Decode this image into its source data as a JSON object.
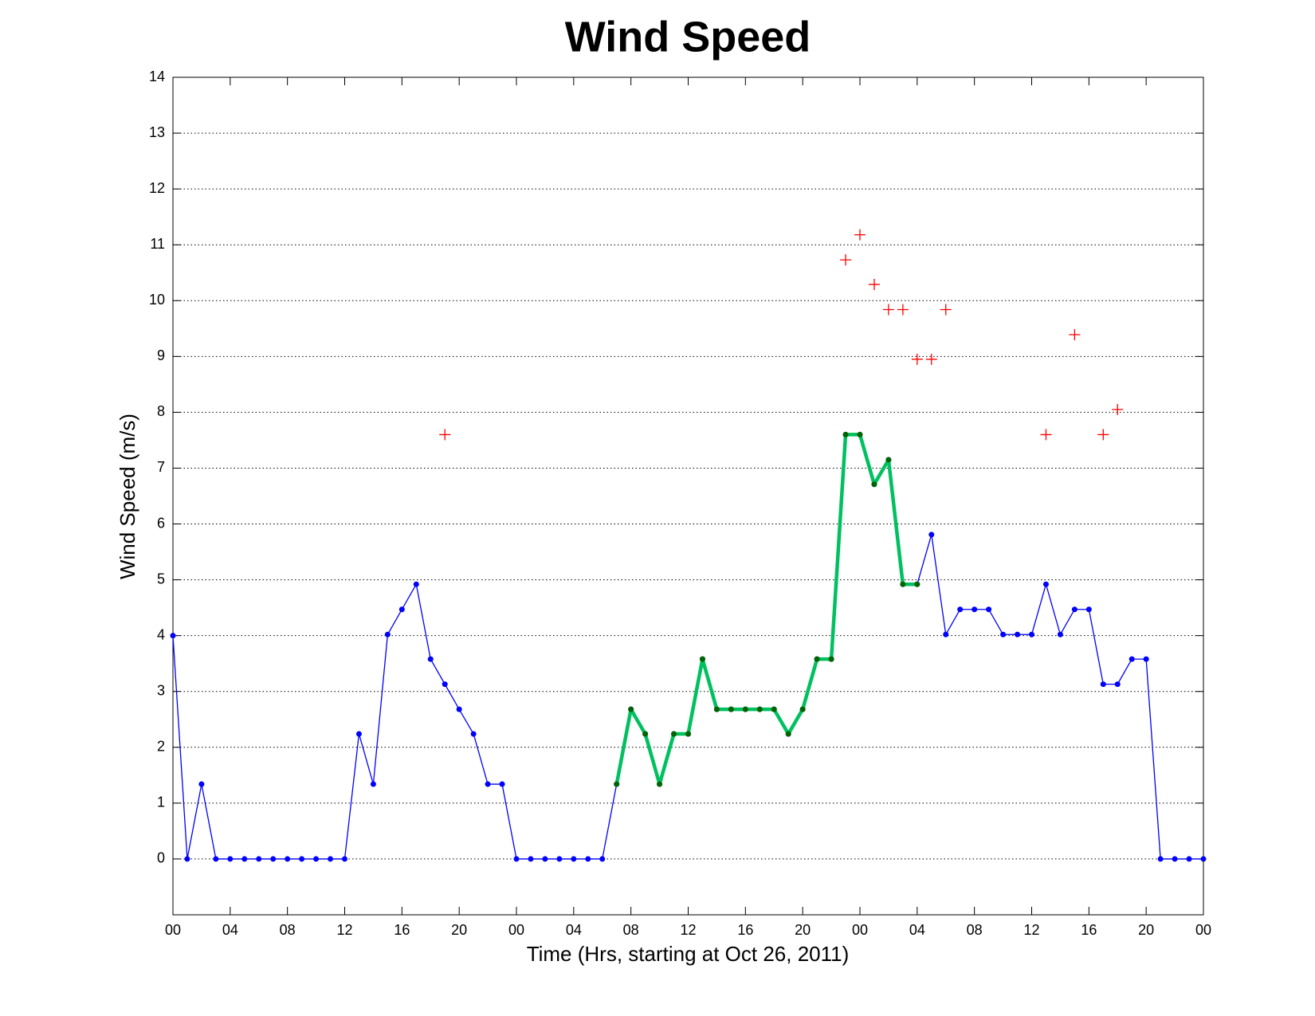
{
  "chart_data": {
    "type": "line",
    "title": "Wind Speed",
    "xlabel": "Time (Hrs, starting at Oct 26, 2011)",
    "ylabel": "Wind Speed (m/s)",
    "x": [
      0,
      1,
      2,
      3,
      4,
      5,
      6,
      7,
      8,
      9,
      10,
      11,
      12,
      13,
      14,
      15,
      16,
      17,
      18,
      19,
      20,
      21,
      22,
      23,
      24,
      25,
      26,
      27,
      28,
      29,
      30,
      31,
      32,
      33,
      34,
      35,
      36,
      37,
      38,
      39,
      40,
      41,
      42,
      43,
      44,
      45,
      46,
      47,
      48,
      49,
      50,
      51,
      52,
      53,
      54,
      55,
      56,
      57,
      58,
      59,
      60,
      61,
      62,
      63,
      64,
      65,
      66,
      67,
      68,
      69,
      70,
      71,
      72
    ],
    "series": [
      {
        "color": "#0000ff",
        "width": 1.3,
        "marker_color": "#0000ff",
        "values": [
          4,
          0,
          1.34,
          0,
          0,
          0,
          0,
          0,
          0,
          0,
          0,
          0,
          0,
          2.24,
          1.34,
          4.02,
          4.47,
          4.92,
          3.58,
          3.13,
          2.68,
          2.24,
          1.34,
          1.34,
          0,
          0,
          0,
          0,
          0,
          0,
          0,
          1.34,
          2.68,
          2.24,
          1.34,
          2.24,
          2.24,
          3.58,
          2.68,
          2.68,
          2.68,
          2.68,
          2.68,
          2.24,
          2.68,
          3.58,
          3.58,
          7.6,
          7.6,
          6.71,
          7.15,
          4.92,
          4.92,
          5.81,
          4.02,
          4.47,
          4.47,
          4.47,
          4.02,
          4.02,
          4.02,
          4.92,
          4.02,
          4.47,
          4.47,
          3.13,
          3.13,
          3.58,
          3.58,
          0,
          0,
          0,
          0
        ]
      },
      {
        "color": "#00c060",
        "width": 4.5,
        "marker_color": "#006400",
        "values": [
          null,
          null,
          null,
          null,
          null,
          null,
          null,
          null,
          null,
          null,
          null,
          null,
          null,
          null,
          null,
          null,
          null,
          null,
          null,
          null,
          null,
          null,
          null,
          null,
          null,
          null,
          null,
          null,
          null,
          null,
          null,
          1.34,
          2.68,
          2.24,
          1.34,
          2.24,
          2.24,
          3.58,
          2.68,
          2.68,
          2.68,
          2.68,
          2.68,
          2.24,
          2.68,
          3.58,
          3.58,
          7.6,
          7.6,
          6.71,
          7.15,
          4.92,
          4.92,
          null,
          null,
          null,
          null,
          null,
          null,
          null,
          null,
          null,
          null,
          null,
          null,
          null,
          null,
          null,
          null,
          null,
          null,
          null,
          null
        ]
      },
      {
        "type": "scatter",
        "marker": "+",
        "color": "#ff0000",
        "x": [
          19,
          47,
          48,
          49,
          50,
          51,
          52,
          53,
          54,
          61,
          63,
          65,
          66
        ],
        "values": [
          7.6,
          10.73,
          11.18,
          10.29,
          9.84,
          9.84,
          8.95,
          8.95,
          9.84,
          7.6,
          9.39,
          7.6,
          8.05
        ]
      }
    ],
    "xlim": [
      0,
      72
    ],
    "xticks": [
      {
        "value": 0,
        "label": "00"
      },
      {
        "value": 4,
        "label": "04"
      },
      {
        "value": 8,
        "label": "08"
      },
      {
        "value": 12,
        "label": "12"
      },
      {
        "value": 16,
        "label": "16"
      },
      {
        "value": 20,
        "label": "20"
      },
      {
        "value": 24,
        "label": "00"
      },
      {
        "value": 28,
        "label": "04"
      },
      {
        "value": 32,
        "label": "08"
      },
      {
        "value": 36,
        "label": "12"
      },
      {
        "value": 40,
        "label": "16"
      },
      {
        "value": 44,
        "label": "20"
      },
      {
        "value": 48,
        "label": "00"
      },
      {
        "value": 52,
        "label": "04"
      },
      {
        "value": 56,
        "label": "08"
      },
      {
        "value": 60,
        "label": "12"
      },
      {
        "value": 64,
        "label": "16"
      },
      {
        "value": 68,
        "label": "20"
      },
      {
        "value": 72,
        "label": "00"
      }
    ],
    "ylim": [
      -1,
      14
    ],
    "yticks": [
      0,
      1,
      2,
      3,
      4,
      5,
      6,
      7,
      8,
      9,
      10,
      11,
      12,
      13,
      14
    ],
    "grid": true
  }
}
